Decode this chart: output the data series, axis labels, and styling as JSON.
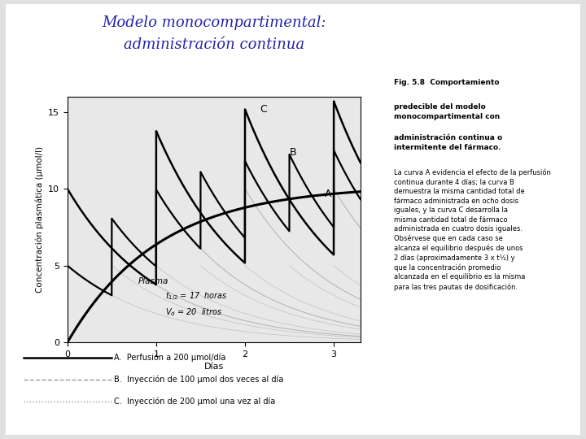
{
  "title_line1": "Modelo monocompartimental:",
  "title_line2": "administración continua",
  "title_color": "#2222aa",
  "title_style": "italic",
  "title_fontsize": 13,
  "fig_bg": "#e8e8e8",
  "plot_bg": "#e8e8e8",
  "xlabel": "Días",
  "ylabel": "Concentración plasmática (µmol/l)",
  "xlim": [
    0,
    3.3
  ],
  "ylim": [
    0,
    16
  ],
  "yticks": [
    0,
    5,
    10,
    15
  ],
  "xticks": [
    0,
    1,
    2,
    3
  ],
  "t_half_hours": 17,
  "Vd_liters": 20,
  "legend_A": "A.  Perfusión a 200 µmol/día",
  "legend_B": "B.  Inyección de 100 µmol dos veces al día",
  "legend_C": "C.  Inyección de 200 µmol una vez al día"
}
